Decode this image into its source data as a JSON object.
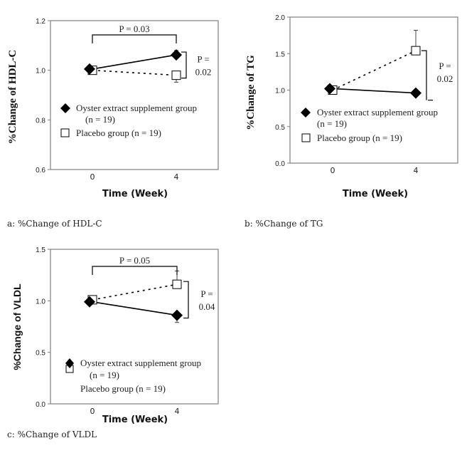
{
  "chart_data": [
    {
      "type": "line",
      "panel": "a",
      "caption": "a: %Change of HDL-C",
      "xlabel": "Time (Week)",
      "ylabel": "%Change of HDL-C",
      "x": [
        0,
        4
      ],
      "x_tick_labels": [
        "0",
        "4"
      ],
      "ylim": [
        0.6,
        1.2
      ],
      "y_ticks": [
        0.6,
        0.8,
        1.0,
        1.2
      ],
      "y_tick_labels": [
        "0.6",
        "0.8",
        "1.0",
        "1.2"
      ],
      "series": [
        {
          "name": "Oyster extract supplement group",
          "name_line2": "(n = 19)",
          "marker": "diamond",
          "line": "solid",
          "values": [
            1.005,
            1.062
          ],
          "err_up": [
            0.005,
            0.018
          ],
          "err_down": [
            0.0,
            0.0
          ]
        },
        {
          "name": "Placebo group (n = 19)",
          "marker": "square",
          "line": "dotted",
          "values": [
            1.0,
            0.98
          ],
          "err_up": [
            0.0,
            0.0
          ],
          "err_down": [
            0.01,
            0.028
          ]
        }
      ],
      "annotations": [
        {
          "type": "between-time",
          "text": "P = 0.03"
        },
        {
          "type": "between-groups",
          "text_line1": "P =",
          "text_line2": "0.02"
        }
      ],
      "legend_placement": "center-left"
    },
    {
      "type": "line",
      "panel": "b",
      "caption": "b: %Change of TG",
      "xlabel": "Time (Week)",
      "ylabel": "%Change of TG",
      "x": [
        0,
        4
      ],
      "x_tick_labels": [
        "0",
        "4"
      ],
      "ylim": [
        0.0,
        2.0
      ],
      "y_ticks": [
        0.0,
        0.5,
        1.0,
        1.5,
        2.0
      ],
      "y_tick_labels": [
        "0.0",
        "0.5",
        "1.0",
        "1.5",
        "2.0"
      ],
      "series": [
        {
          "name": "Oyster extract supplement group",
          "name_line2": "(n = 19)",
          "marker": "diamond",
          "line": "solid",
          "values": [
            1.02,
            0.96
          ],
          "err_up": [
            0.0,
            0.0
          ],
          "err_down": [
            0.04,
            0.04
          ]
        },
        {
          "name": "Placebo group (n = 19)",
          "marker": "square",
          "line": "dotted",
          "values": [
            1.0,
            1.54
          ],
          "err_up": [
            0.0,
            0.28
          ],
          "err_down": [
            0.03,
            0.0
          ]
        }
      ],
      "annotations": [
        {
          "type": "between-groups",
          "text_line1": "P =",
          "text_line2": "0.02"
        }
      ],
      "legend_placement": "center-left"
    },
    {
      "type": "line",
      "panel": "c",
      "caption": "c: %Change of VLDL",
      "xlabel": "Time (Week)",
      "ylabel": "%Change of VLDL",
      "x": [
        0,
        4
      ],
      "x_tick_labels": [
        "0",
        "4"
      ],
      "ylim": [
        0.0,
        1.5
      ],
      "y_ticks": [
        0.0,
        0.5,
        1.0,
        1.5
      ],
      "y_tick_labels": [
        "0.0",
        "0.5",
        "1.0",
        "1.5"
      ],
      "series": [
        {
          "name": "Oyster extract supplement group",
          "name_line2": "(n = 19)",
          "marker": "diamond",
          "line": "solid",
          "values": [
            0.99,
            0.86
          ],
          "err_up": [
            0.0,
            0.0
          ],
          "err_down": [
            0.0,
            0.07
          ]
        },
        {
          "name": "Placebo group (n = 19)",
          "marker": "square",
          "line": "dotted",
          "values": [
            1.01,
            1.16
          ],
          "err_up": [
            0.03,
            0.13
          ],
          "err_down": [
            0.0,
            0.0
          ]
        }
      ],
      "annotations": [
        {
          "type": "between-time",
          "text": "P = 0.05"
        },
        {
          "type": "between-groups",
          "text_line1": "P =",
          "text_line2": "0.04"
        }
      ],
      "legend_placement": "bottom-left"
    }
  ],
  "colors": {
    "axis": "#7f7f7f",
    "line": "#000000",
    "marker_fill_oyster": "#000000",
    "marker_fill_placebo": "#ffffff"
  }
}
